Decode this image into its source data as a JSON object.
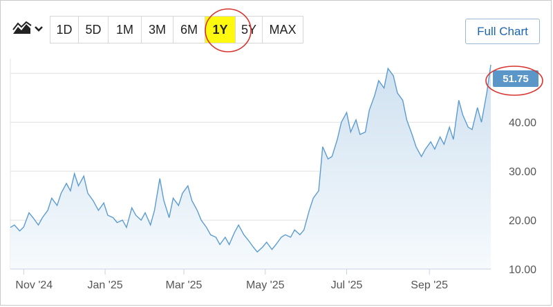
{
  "toolbar": {
    "chart_type_icon": "area-chart-icon",
    "dropdown_icon": "chevron-down-icon",
    "ranges": [
      "1D",
      "5D",
      "1M",
      "3M",
      "6M",
      "1Y",
      "5Y",
      "MAX"
    ],
    "active_range": "1Y",
    "full_chart_label": "Full Chart"
  },
  "colors": {
    "line": "#5b9bd0",
    "fill_top": "#cfe1f0",
    "fill_bottom": "#f6fafd",
    "last_badge": "#5a97c8",
    "highlight": "#fff80f",
    "annotation": "#d9322b",
    "grid": "#e0e0e0",
    "axis": "#c8d2e3"
  },
  "chart_data": {
    "type": "area",
    "title": "",
    "xlabel": "",
    "ylabel": "",
    "x_ticks": [
      "Nov '24",
      "Jan '25",
      "Mar '25",
      "May '25",
      "Jul '25",
      "Sep '25"
    ],
    "y_ticks": [
      "10.00",
      "20.00",
      "30.00",
      "40.00"
    ],
    "ylim": [
      10,
      53
    ],
    "xlim": [
      "2024-10-22",
      "2025-10-17"
    ],
    "grid": true,
    "last_value": "51.75",
    "series": [
      {
        "points": [
          [
            "2024-10-22",
            18.5
          ],
          [
            "2024-10-25",
            19.0
          ],
          [
            "2024-10-29",
            17.8
          ],
          [
            "2024-11-01",
            18.6
          ],
          [
            "2024-11-05",
            21.5
          ],
          [
            "2024-11-08",
            20.5
          ],
          [
            "2024-11-12",
            19.0
          ],
          [
            "2024-11-15",
            20.5
          ],
          [
            "2024-11-19",
            22.0
          ],
          [
            "2024-11-22",
            24.5
          ],
          [
            "2024-11-26",
            23.0
          ],
          [
            "2024-11-29",
            25.5
          ],
          [
            "2024-12-03",
            27.5
          ],
          [
            "2024-12-06",
            26.0
          ],
          [
            "2024-12-09",
            29.5
          ],
          [
            "2024-12-12",
            27.0
          ],
          [
            "2024-12-16",
            29.0
          ],
          [
            "2024-12-19",
            25.5
          ],
          [
            "2024-12-23",
            24.0
          ],
          [
            "2024-12-27",
            22.0
          ],
          [
            "2024-12-31",
            23.5
          ],
          [
            "2025-01-03",
            21.0
          ],
          [
            "2025-01-07",
            20.5
          ],
          [
            "2025-01-10",
            19.5
          ],
          [
            "2025-01-14",
            20.0
          ],
          [
            "2025-01-17",
            18.5
          ],
          [
            "2025-01-21",
            22.5
          ],
          [
            "2025-01-24",
            21.0
          ],
          [
            "2025-01-28",
            20.0
          ],
          [
            "2025-01-31",
            21.5
          ],
          [
            "2025-02-04",
            19.0
          ],
          [
            "2025-02-07",
            22.0
          ],
          [
            "2025-02-11",
            28.5
          ],
          [
            "2025-02-14",
            24.0
          ],
          [
            "2025-02-18",
            20.5
          ],
          [
            "2025-02-21",
            24.5
          ],
          [
            "2025-02-25",
            23.0
          ],
          [
            "2025-02-28",
            25.5
          ],
          [
            "2025-03-04",
            27.0
          ],
          [
            "2025-03-07",
            24.0
          ],
          [
            "2025-03-11",
            22.0
          ],
          [
            "2025-03-14",
            20.0
          ],
          [
            "2025-03-18",
            18.5
          ],
          [
            "2025-03-21",
            17.0
          ],
          [
            "2025-03-25",
            16.5
          ],
          [
            "2025-03-28",
            15.0
          ],
          [
            "2025-04-01",
            16.5
          ],
          [
            "2025-04-04",
            15.0
          ],
          [
            "2025-04-08",
            17.5
          ],
          [
            "2025-04-11",
            19.0
          ],
          [
            "2025-04-15",
            17.0
          ],
          [
            "2025-04-18",
            16.0
          ],
          [
            "2025-04-22",
            14.5
          ],
          [
            "2025-04-25",
            13.5
          ],
          [
            "2025-04-29",
            14.5
          ],
          [
            "2025-05-02",
            15.5
          ],
          [
            "2025-05-06",
            14.0
          ],
          [
            "2025-05-09",
            15.0
          ],
          [
            "2025-05-13",
            16.5
          ],
          [
            "2025-05-16",
            17.0
          ],
          [
            "2025-05-20",
            16.5
          ],
          [
            "2025-05-23",
            18.0
          ],
          [
            "2025-05-27",
            17.0
          ],
          [
            "2025-05-30",
            18.0
          ],
          [
            "2025-06-03",
            22.0
          ],
          [
            "2025-06-06",
            24.5
          ],
          [
            "2025-06-10",
            26.0
          ],
          [
            "2025-06-13",
            35.0
          ],
          [
            "2025-06-17",
            32.5
          ],
          [
            "2025-06-20",
            33.0
          ],
          [
            "2025-06-24",
            36.5
          ],
          [
            "2025-06-27",
            40.0
          ],
          [
            "2025-07-01",
            42.0
          ],
          [
            "2025-07-04",
            38.0
          ],
          [
            "2025-07-08",
            40.5
          ],
          [
            "2025-07-11",
            37.5
          ],
          [
            "2025-07-15",
            38.0
          ],
          [
            "2025-07-18",
            42.5
          ],
          [
            "2025-07-22",
            45.5
          ],
          [
            "2025-07-25",
            48.5
          ],
          [
            "2025-07-29",
            47.0
          ],
          [
            "2025-08-01",
            51.0
          ],
          [
            "2025-08-05",
            49.5
          ],
          [
            "2025-08-08",
            46.0
          ],
          [
            "2025-08-12",
            44.5
          ],
          [
            "2025-08-15",
            40.5
          ],
          [
            "2025-08-19",
            37.5
          ],
          [
            "2025-08-22",
            35.0
          ],
          [
            "2025-08-26",
            33.0
          ],
          [
            "2025-08-29",
            34.5
          ],
          [
            "2025-09-02",
            36.0
          ],
          [
            "2025-09-05",
            34.5
          ],
          [
            "2025-09-09",
            37.0
          ],
          [
            "2025-09-12",
            35.5
          ],
          [
            "2025-09-16",
            39.0
          ],
          [
            "2025-09-19",
            36.5
          ],
          [
            "2025-09-23",
            44.5
          ],
          [
            "2025-09-26",
            41.5
          ],
          [
            "2025-09-30",
            39.0
          ],
          [
            "2025-10-03",
            38.5
          ],
          [
            "2025-10-07",
            43.0
          ],
          [
            "2025-10-10",
            40.0
          ],
          [
            "2025-10-14",
            46.0
          ],
          [
            "2025-10-17",
            51.75
          ]
        ]
      }
    ]
  }
}
